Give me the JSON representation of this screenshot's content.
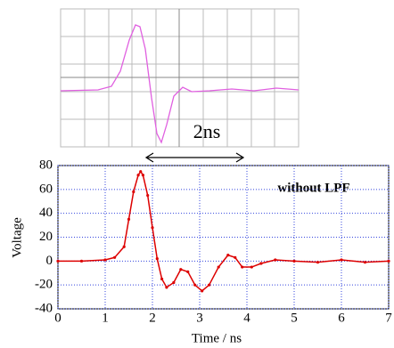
{
  "chart_data": {
    "type": "line",
    "annotations": [
      "2ns",
      "without LPF"
    ],
    "xlabel": "Time / ns",
    "ylabel": "Voltage",
    "x": [
      0,
      0.5,
      1,
      1.2,
      1.4,
      1.5,
      1.6,
      1.7,
      1.75,
      1.8,
      1.9,
      2.0,
      2.1,
      2.2,
      2.3,
      2.45,
      2.6,
      2.75,
      2.9,
      3.05,
      3.2,
      3.4,
      3.6,
      3.75,
      3.9,
      4.1,
      4.3,
      4.6,
      5,
      5.5,
      6,
      6.5,
      7
    ],
    "series": [
      {
        "name": "without LPF",
        "color": "#dd0000",
        "values": [
          0,
          0,
          1,
          3,
          12,
          35,
          58,
          72,
          75,
          72,
          55,
          28,
          2,
          -15,
          -22,
          -18,
          -7,
          -9,
          -20,
          -25,
          -20,
          -5,
          5,
          3,
          -5,
          -5,
          -2,
          1,
          0,
          -1,
          1,
          -1,
          0
        ]
      }
    ],
    "xlim": [
      0,
      7
    ],
    "xticks": [
      0,
      1,
      2,
      3,
      4,
      5,
      6,
      7
    ],
    "ylim": [
      -40,
      80
    ],
    "yticks": [
      -40,
      -20,
      0,
      20,
      40,
      60,
      80
    ],
    "grid": true
  }
}
